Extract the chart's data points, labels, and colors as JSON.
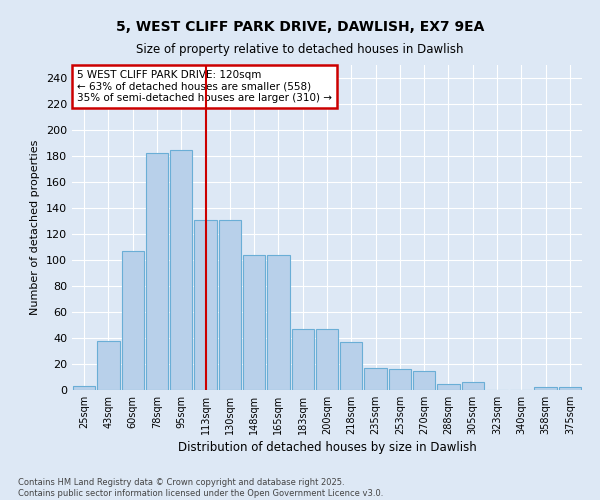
{
  "title_line1": "5, WEST CLIFF PARK DRIVE, DAWLISH, EX7 9EA",
  "title_line2": "Size of property relative to detached houses in Dawlish",
  "xlabel": "Distribution of detached houses by size in Dawlish",
  "ylabel": "Number of detached properties",
  "categories": [
    "25sqm",
    "43sqm",
    "60sqm",
    "78sqm",
    "95sqm",
    "113sqm",
    "130sqm",
    "148sqm",
    "165sqm",
    "183sqm",
    "200sqm",
    "218sqm",
    "235sqm",
    "253sqm",
    "270sqm",
    "288sqm",
    "305sqm",
    "323sqm",
    "340sqm",
    "358sqm",
    "375sqm"
  ],
  "values": [
    3,
    38,
    107,
    182,
    185,
    131,
    131,
    104,
    104,
    47,
    47,
    37,
    17,
    16,
    15,
    5,
    6,
    0,
    0,
    2,
    2
  ],
  "bar_color": "#b8d0ea",
  "bar_edge_color": "#6aaed6",
  "background_color": "#dde8f5",
  "grid_color": "#ffffff",
  "ylim": [
    0,
    250
  ],
  "yticks": [
    0,
    20,
    40,
    60,
    80,
    100,
    120,
    140,
    160,
    180,
    200,
    220,
    240
  ],
  "annotation_text": "5 WEST CLIFF PARK DRIVE: 120sqm\n← 63% of detached houses are smaller (558)\n35% of semi-detached houses are larger (310) →",
  "vline_index": 5,
  "vline_color": "#cc0000",
  "annotation_box_color": "#ffffff",
  "annotation_box_edge": "#cc0000",
  "footnote": "Contains HM Land Registry data © Crown copyright and database right 2025.\nContains public sector information licensed under the Open Government Licence v3.0."
}
